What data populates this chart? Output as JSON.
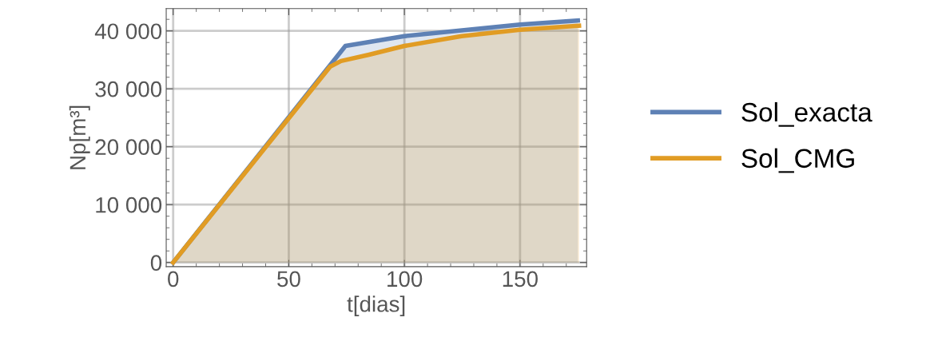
{
  "chart_data": {
    "type": "area",
    "xlabel": "t[dias]",
    "ylabel": "Np[m³]",
    "xlim": [
      -3,
      178.8
    ],
    "ylim": [
      -720,
      43860
    ],
    "xticks": [
      0,
      50,
      100,
      150
    ],
    "yticks": [
      0,
      {
        "value": 10000,
        "label": "10 000"
      },
      {
        "value": 20000,
        "label": "20 000"
      },
      {
        "value": 30000,
        "label": "30 000"
      },
      {
        "value": 40000,
        "label": "40 000"
      }
    ],
    "grid": true,
    "legend": "right",
    "series": [
      {
        "name": "Sol_exacta",
        "color": "#5e81b5",
        "x": [
          0,
          74.5,
          100,
          150,
          175
        ],
        "values": [
          0,
          37400,
          39100,
          41100,
          41800
        ]
      },
      {
        "name": "Sol_CMG",
        "color": "#e19c24",
        "x": [
          0,
          67.8,
          72.6,
          84.7,
          100,
          124.7,
          150,
          175.5
        ],
        "values": [
          0,
          33800,
          34800,
          35900,
          37400,
          39100,
          40200,
          40900
        ]
      }
    ]
  }
}
